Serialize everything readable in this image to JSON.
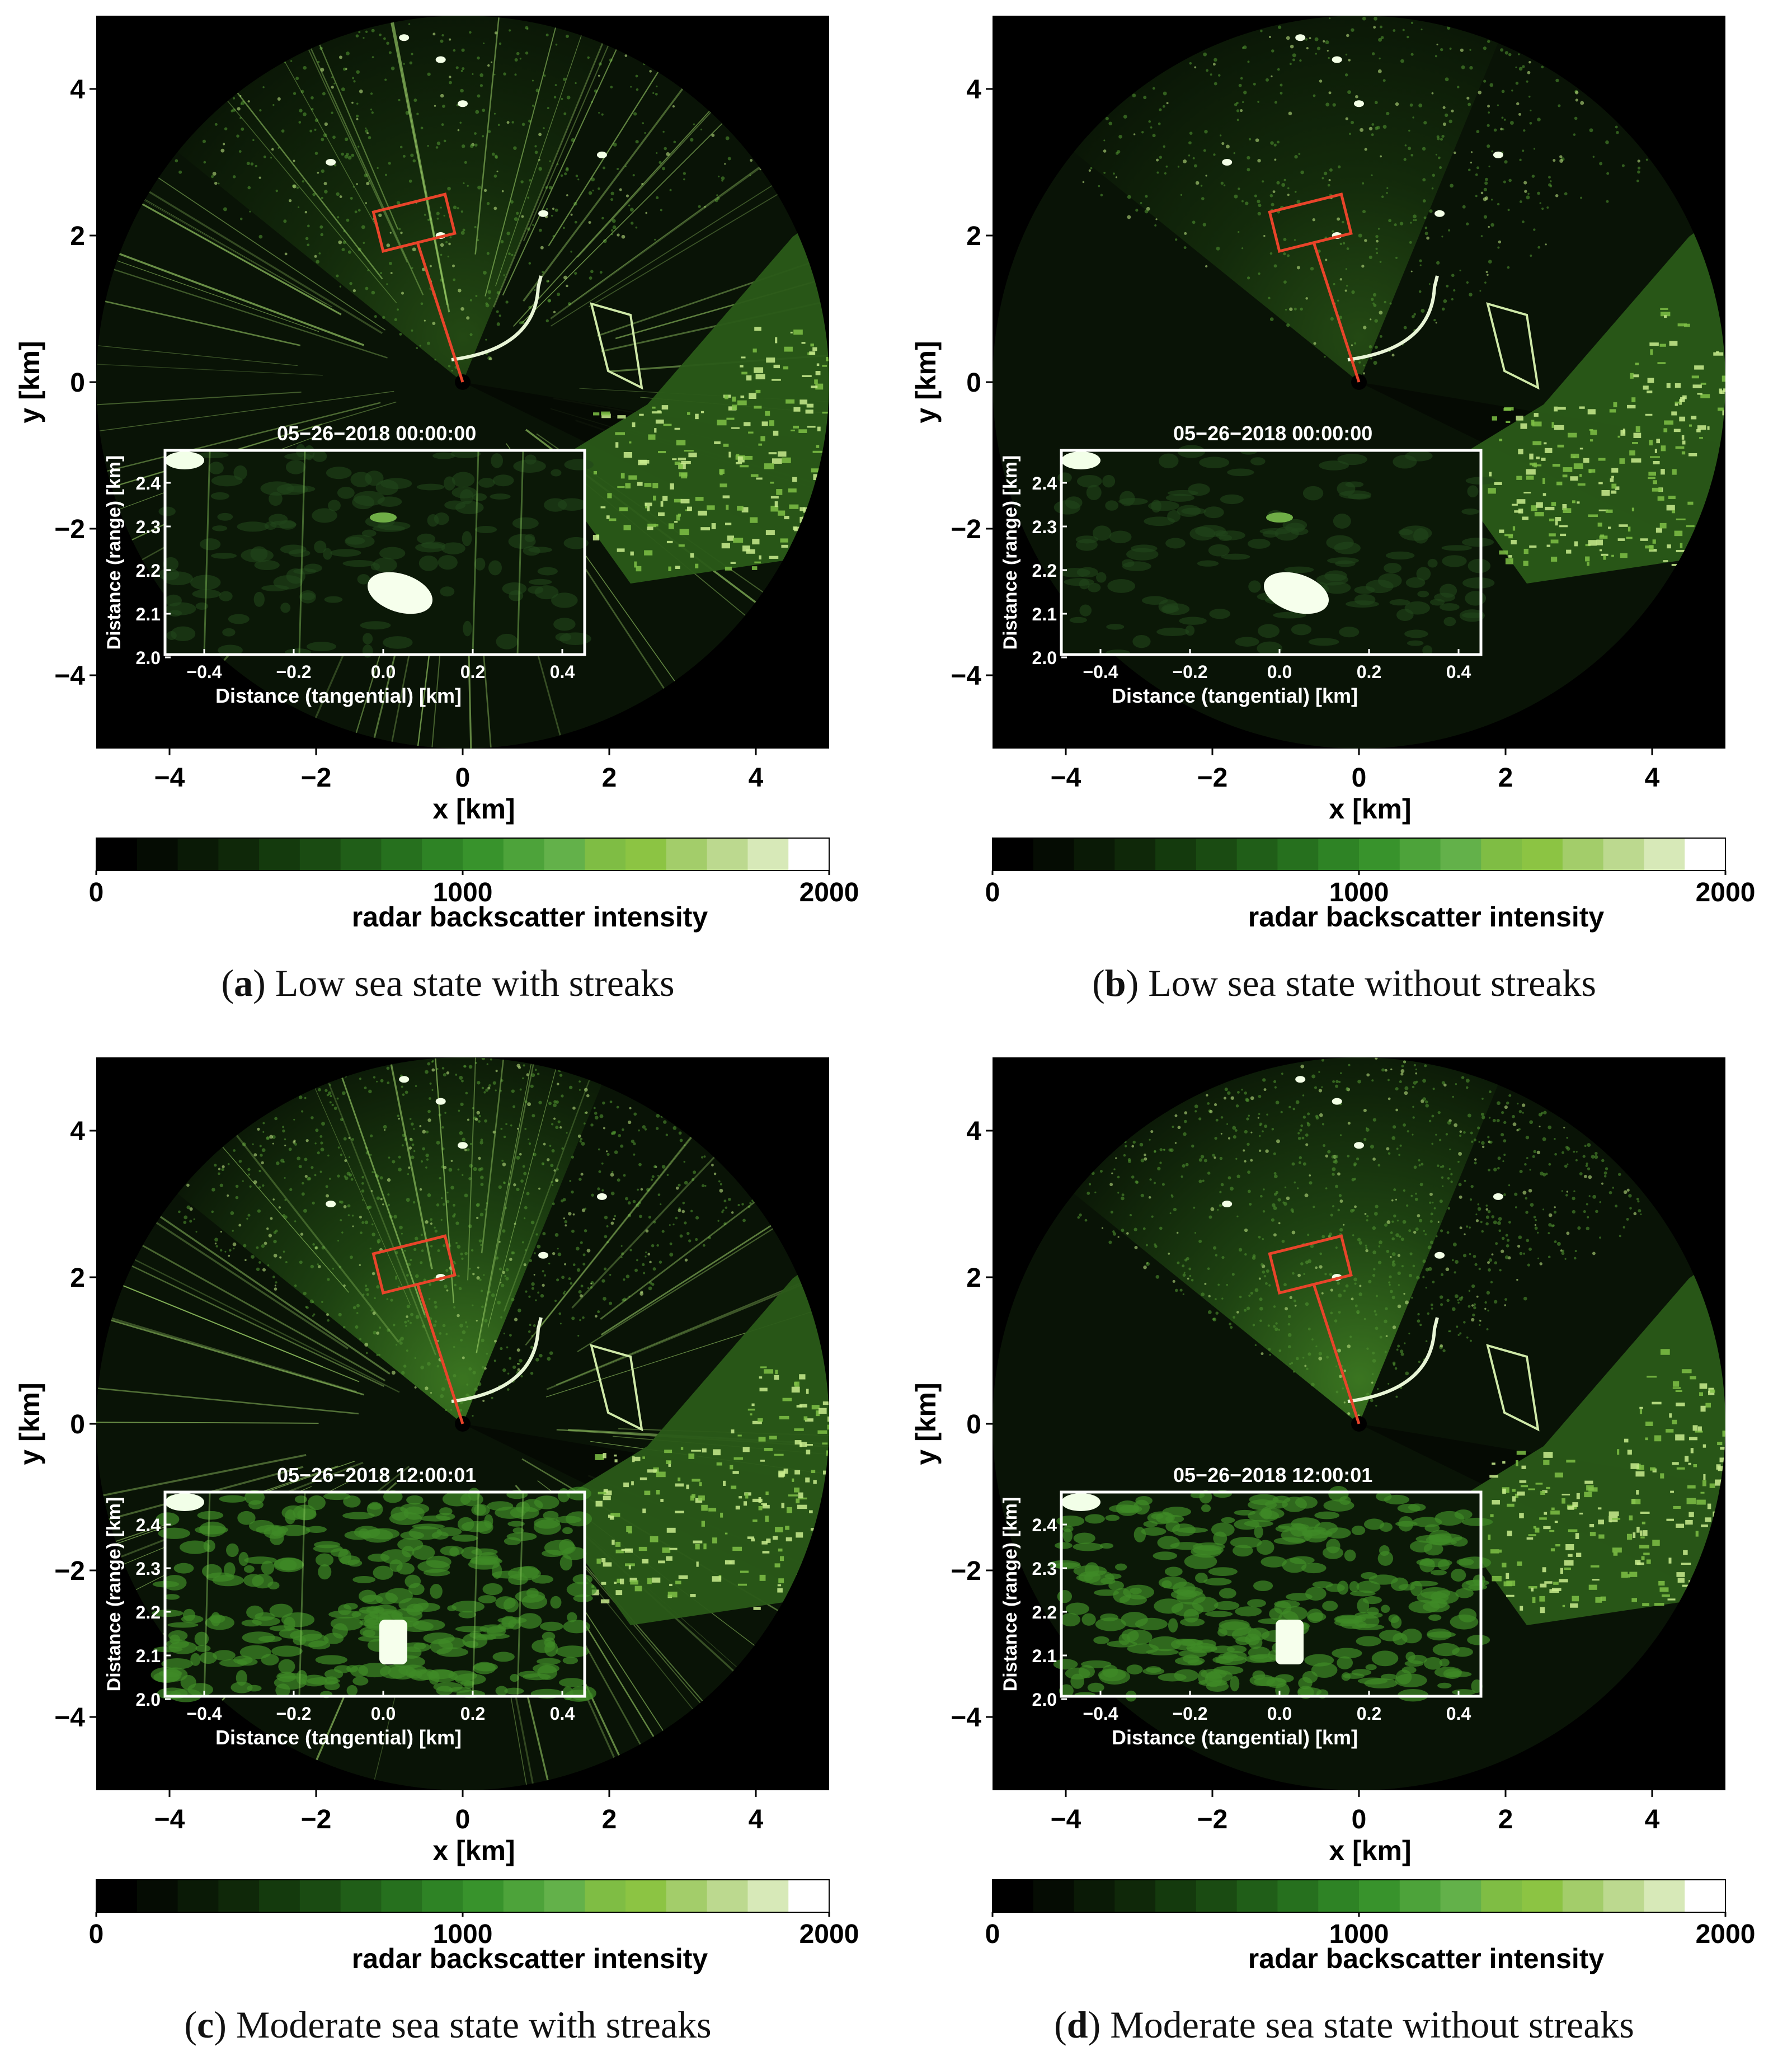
{
  "panels": [
    {
      "letter": "a",
      "caption": "Low sea state with streaks",
      "timestamp": "05−26−2018 00:00:00",
      "sea_state": "low",
      "streaks": true
    },
    {
      "letter": "b",
      "caption": "Low sea state without streaks",
      "timestamp": "05−26−2018 00:00:00",
      "sea_state": "low",
      "streaks": false
    },
    {
      "letter": "c",
      "caption": "Moderate sea state with streaks",
      "timestamp": "05−26−2018 12:00:01",
      "sea_state": "moderate",
      "streaks": true
    },
    {
      "letter": "d",
      "caption": "Moderate sea state without streaks",
      "timestamp": "05−26−2018 12:00:01",
      "sea_state": "moderate",
      "streaks": false
    }
  ],
  "axes": {
    "x_label": "x [km]",
    "y_label": "y [km]",
    "x_ticks": [
      "−4",
      "−2",
      "0",
      "2",
      "4"
    ],
    "y_ticks": [
      "4",
      "2",
      "0",
      "−2",
      "−4"
    ]
  },
  "inset": {
    "x_label": "Distance (tangential) [km]",
    "y_label": "Distance (range) [km]",
    "x_ticks": [
      "−0.4",
      "−0.2",
      "0.0",
      "0.2",
      "0.4"
    ],
    "y_ticks": [
      "2.4",
      "2.3",
      "2.2",
      "2.1",
      "2.0"
    ]
  },
  "colorbar": {
    "label": "radar backscatter intensity",
    "tick_labels": [
      "0",
      "1000",
      "2000"
    ],
    "colors": [
      "#000000",
      "#050c03",
      "#0a1a06",
      "#0f2809",
      "#143a0d",
      "#1a4b12",
      "#205e18",
      "#26701e",
      "#2e8325",
      "#38932c",
      "#4da33a",
      "#63b14a",
      "#7fbd44",
      "#8cc443",
      "#a3cd6a",
      "#bcd98f",
      "#d7e9b8",
      "#ffffff"
    ]
  },
  "colors": {
    "radar_background": "#000000",
    "sea_clutter": "#1c3a12",
    "land": "#a8d26a",
    "highlight_box": "#e8442a",
    "inset_border": "#ffffff"
  }
}
